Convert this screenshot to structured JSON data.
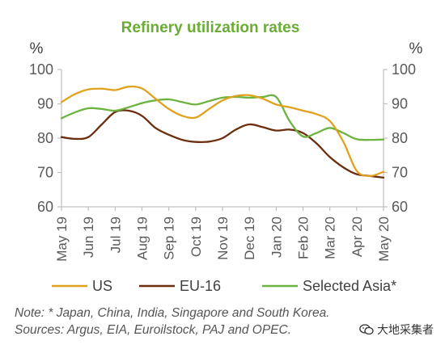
{
  "chart_data": {
    "type": "line",
    "title": "Refinery utilization rates",
    "title_color": "#6aac35",
    "ylabel_left": "%",
    "ylabel_right": "%",
    "ylim": [
      60,
      100
    ],
    "yticks": [
      60,
      70,
      80,
      90,
      100
    ],
    "categories": [
      "May 19",
      "Jun 19",
      "Jul 19",
      "Aug 19",
      "Sep 19",
      "Oct 19",
      "Nov 19",
      "Dec 19",
      "Jan 20",
      "Feb 20",
      "Mar 20",
      "Apr 20",
      "May 20"
    ],
    "grid": false,
    "legend_position": "bottom",
    "series": [
      {
        "name": "US",
        "color": "#e0a21e",
        "x": [
          0,
          0.5,
          1,
          1.5,
          2,
          2.5,
          3,
          3.5,
          4,
          4.5,
          5,
          5.5,
          6,
          6.5,
          7,
          7.5,
          8,
          8.5,
          9,
          9.5,
          10,
          10.5,
          11,
          11.5,
          12
        ],
        "values": [
          90.5,
          92.8,
          94.2,
          94.4,
          94.0,
          95.0,
          94.5,
          91.5,
          88.5,
          86.5,
          86.0,
          88.5,
          91.0,
          92.3,
          92.5,
          91.5,
          89.8,
          89.0,
          88.0,
          87.0,
          85.0,
          79.0,
          70.5,
          69.0,
          70.2
        ]
      },
      {
        "name": "EU-16",
        "color": "#6b2e0f",
        "x": [
          0,
          0.5,
          1,
          1.5,
          2,
          2.5,
          3,
          3.5,
          4,
          4.5,
          5,
          5.5,
          6,
          6.5,
          7,
          7.5,
          8,
          8.5,
          9,
          9.5,
          10,
          10.5,
          11,
          11.5,
          12
        ],
        "values": [
          80.3,
          79.8,
          80.3,
          84.0,
          87.6,
          88.0,
          86.5,
          83.0,
          81.0,
          79.5,
          78.9,
          79.0,
          80.0,
          82.5,
          84.0,
          83.2,
          82.2,
          82.5,
          81.5,
          78.5,
          74.5,
          71.5,
          69.5,
          69.0,
          68.5
        ]
      },
      {
        "name": "Selected Asia*",
        "color": "#6cb33f",
        "x": [
          0,
          0.5,
          1,
          1.5,
          2,
          2.5,
          3,
          3.5,
          4,
          4.5,
          5,
          5.5,
          6,
          6.5,
          7,
          7.5,
          8,
          8.5,
          9,
          9.5,
          10,
          10.5,
          11,
          11.5,
          12
        ],
        "values": [
          85.8,
          87.5,
          88.7,
          88.5,
          88.0,
          89.0,
          90.2,
          91.0,
          91.3,
          90.5,
          89.8,
          90.8,
          91.8,
          92.0,
          91.8,
          92.0,
          92.0,
          85.0,
          80.5,
          81.5,
          83.0,
          81.5,
          79.7,
          79.5,
          79.6
        ]
      }
    ],
    "notes": [
      "Note: * Japan, China, India, Singapore and South Korea.",
      "Sources: Argus, EIA, Euroilstock, PAJ and OPEC."
    ]
  },
  "watermark": {
    "text": "大地采集者",
    "icon": "wechat-icon"
  }
}
